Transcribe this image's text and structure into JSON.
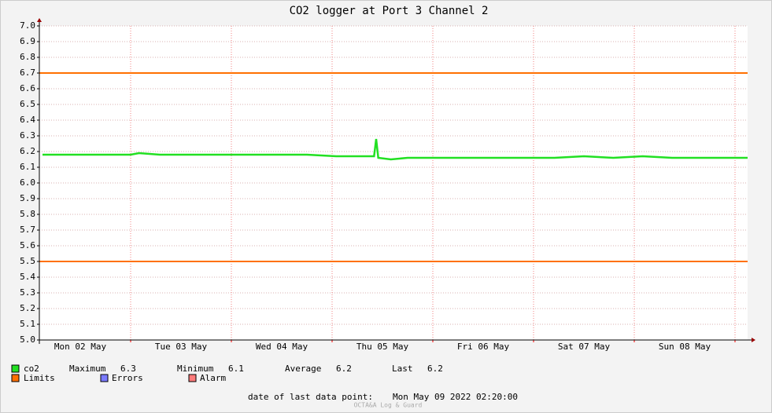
{
  "chart_data": {
    "type": "line",
    "title": "CO2 logger at Port 3 Channel 2",
    "x": [
      3,
      10,
      17,
      24,
      26,
      31,
      38,
      45,
      52,
      59,
      66,
      73,
      80,
      82,
      82.5,
      83,
      86,
      90,
      97,
      104,
      111,
      118,
      125,
      132,
      139,
      146,
      153,
      160,
      167,
      171
    ],
    "series": [
      {
        "name": "co2",
        "color": "#22e022",
        "values": [
          6.18,
          6.18,
          6.18,
          6.18,
          6.19,
          6.18,
          6.18,
          6.18,
          6.18,
          6.18,
          6.18,
          6.17,
          6.17,
          6.17,
          6.28,
          6.16,
          6.15,
          6.16,
          6.16,
          6.16,
          6.16,
          6.16,
          6.16,
          6.17,
          6.16,
          6.17,
          6.16,
          6.16,
          6.16,
          6.16
        ]
      }
    ],
    "limits": {
      "name": "Limits",
      "color": "#ff7000",
      "values": [
        6.7,
        5.5
      ]
    },
    "legend_extra": [
      {
        "name": "Errors",
        "color": "#7b7bff"
      },
      {
        "name": "Alarm",
        "color": "#ff7b7b"
      }
    ],
    "stats": [
      {
        "label": "Maximum",
        "value": 6.3
      },
      {
        "label": "Minimum",
        "value": 6.1
      },
      {
        "label": "Average",
        "value": 6.2
      },
      {
        "label": "Last",
        "value": 6.2
      }
    ],
    "xlim": [
      2.25,
      171
    ],
    "xticks": [
      {
        "value": 12,
        "label": "Mon 02 May"
      },
      {
        "value": 36,
        "label": "Tue 03 May"
      },
      {
        "value": 60,
        "label": "Wed 04 May"
      },
      {
        "value": 84,
        "label": "Thu 05 May"
      },
      {
        "value": 108,
        "label": "Fri 06 May"
      },
      {
        "value": 132,
        "label": "Sat 07 May"
      },
      {
        "value": 156,
        "label": "Sun 08 May"
      }
    ],
    "xmajor": [
      24,
      48,
      72,
      96,
      120,
      144,
      168
    ],
    "ylim": [
      5,
      7
    ],
    "yticks": [
      {
        "value": 5,
        "label": "5.0"
      },
      5.1,
      5.2,
      5.3,
      5.4,
      5.5,
      5.6,
      5.7,
      5.8,
      5.9,
      {
        "value": 6,
        "label": "6.0"
      },
      6.1,
      6.2,
      6.3,
      6.4,
      6.5,
      6.6,
      6.7,
      6.8,
      6.9,
      {
        "value": 7,
        "label": "7.0"
      }
    ],
    "grid": true,
    "footer": {
      "label": "date of last data point:",
      "value": "Mon May 09 2022 02:20:00"
    },
    "watermark": "OCTA&A Log & Guard"
  }
}
